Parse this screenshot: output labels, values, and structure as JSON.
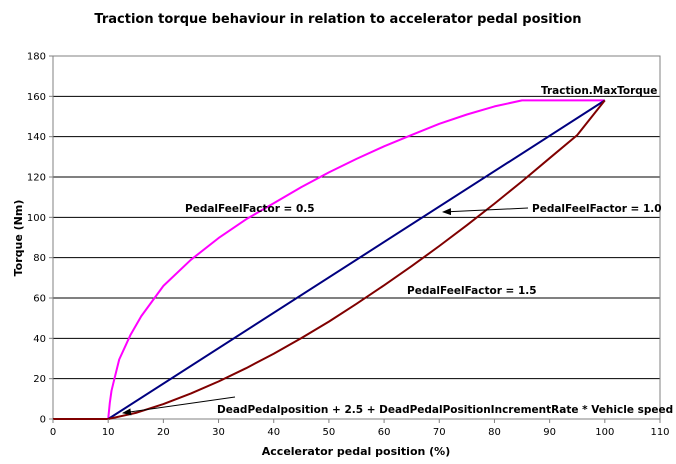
{
  "chart_data": {
    "type": "line",
    "title": "Traction torque behaviour in relation to accelerator pedal position",
    "xlabel": "Accelerator pedal position (%)",
    "ylabel": "Torque (Nm)",
    "xlim": [
      0,
      110
    ],
    "ylim": [
      0,
      180
    ],
    "xticks": [
      0,
      10,
      20,
      30,
      40,
      50,
      60,
      70,
      80,
      90,
      100,
      110
    ],
    "yticks": [
      0,
      20,
      40,
      60,
      80,
      100,
      120,
      140,
      160,
      180
    ],
    "grid": "horizontal",
    "series": [
      {
        "color": "#ff00ff",
        "x": [
          0,
          10,
          10.3,
          10.6,
          11,
          12,
          14,
          16,
          20,
          25,
          30,
          35,
          40,
          45,
          50,
          55,
          60,
          65,
          70,
          75,
          80,
          85,
          90,
          95,
          100
        ],
        "y": [
          0,
          0,
          8,
          14,
          18.5,
          29.5,
          41.5,
          51,
          66,
          79,
          89.7,
          99,
          107,
          115,
          122.3,
          129,
          135.2,
          140.9,
          146.4,
          151,
          155,
          158,
          158,
          158,
          158
        ]
      },
      {
        "color": "#000080",
        "x": [
          0,
          10,
          100
        ],
        "y": [
          0,
          0,
          158
        ]
      },
      {
        "color": "#800000",
        "x": [
          0,
          10,
          15,
          20,
          25,
          30,
          35,
          40,
          45,
          50,
          55,
          60,
          65,
          70,
          75,
          80,
          85,
          90,
          95,
          100
        ],
        "y": [
          0,
          0,
          3,
          7.4,
          12.7,
          18.6,
          25.2,
          32.4,
          40.1,
          48.3,
          57.1,
          66.3,
          75.8,
          85.8,
          96.1,
          106.8,
          117.8,
          129.3,
          140.8,
          158
        ]
      }
    ],
    "annotations": [
      {
        "text": "Traction.MaxTorque"
      },
      {
        "text": "PedalFeelFactor = 0.5"
      },
      {
        "text": "PedalFeelFactor = 1.0"
      },
      {
        "text": "PedalFeelFactor = 1.5"
      },
      {
        "text": "DeadPedalposition + 2.5 + DeadPedalPositionIncrementRate * Vehicle speed"
      }
    ]
  }
}
